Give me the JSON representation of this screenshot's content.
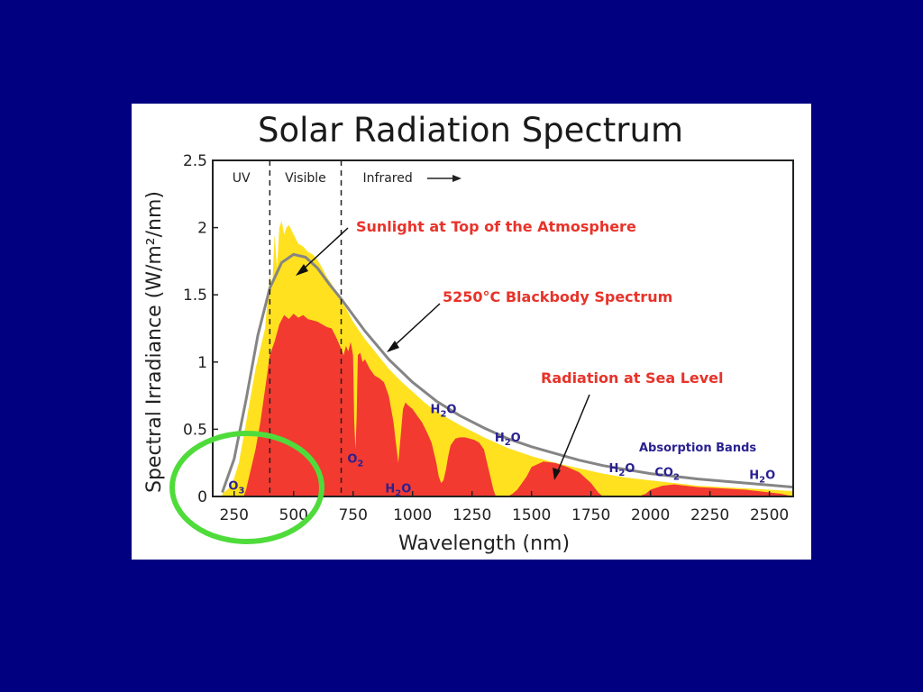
{
  "colors": {
    "background": "#000080",
    "panel": "#ffffff",
    "top_atmosphere": "#ffe11f",
    "sea_level": "#f23a31",
    "blackbody": "#858585",
    "band_label": "#2a2190",
    "annotation": "#e8332a",
    "highlight": "#4fdc3b"
  },
  "chart_data": {
    "type": "area",
    "title": "Solar Radiation Spectrum",
    "xlabel": "Wavelength (nm)",
    "ylabel": "Spectral Irradiance (W/m²/nm)",
    "xlim": [
      160,
      2600
    ],
    "ylim": [
      0,
      2.5
    ],
    "x_ticks": [
      250,
      500,
      750,
      1000,
      1250,
      1500,
      1750,
      2000,
      2250,
      2500
    ],
    "y_ticks": [
      0,
      0.5,
      1,
      1.5,
      2,
      2.5
    ],
    "x_tick_labels": [
      "250",
      "500",
      "750",
      "1000",
      "1250",
      "1500",
      "1750",
      "2000",
      "2250",
      "2500"
    ],
    "y_tick_labels": [
      "0",
      "0.5",
      "1",
      "1.5",
      "2",
      "2.5"
    ],
    "grid": false,
    "regions": [
      {
        "label": "UV",
        "to": 400
      },
      {
        "label": "Visible",
        "from": 400,
        "to": 700
      },
      {
        "label": "Infrared",
        "from": 700,
        "arrow": true
      }
    ],
    "region_boundaries": [
      400,
      700
    ],
    "annotations": {
      "top": "Sunlight at Top of the Atmosphere",
      "blackbody": "5250°C Blackbody Spectrum",
      "sea": "Radiation at Sea Level",
      "absorption": "Absorption Bands"
    },
    "absorption_bands": [
      {
        "x": 260,
        "y": 0.05,
        "main": "O",
        "sub": "3"
      },
      {
        "x": 760,
        "y": 0.25,
        "main": "O",
        "sub": "2"
      },
      {
        "x": 940,
        "y": 0.03,
        "main": "H",
        "sub": "2",
        "tail": "O"
      },
      {
        "x": 1130,
        "y": 0.62,
        "main": "H",
        "sub": "2",
        "tail": "O"
      },
      {
        "x": 1400,
        "y": 0.41,
        "main": "H",
        "sub": "2",
        "tail": "O"
      },
      {
        "x": 1880,
        "y": 0.18,
        "main": "H",
        "sub": "2",
        "tail": "O"
      },
      {
        "x": 2070,
        "y": 0.15,
        "main": "CO",
        "sub": "2"
      },
      {
        "x": 2470,
        "y": 0.13,
        "main": "H",
        "sub": "2",
        "tail": "O"
      }
    ],
    "series": [
      {
        "name": "Sunlight at Top of the Atmosphere",
        "x": [
          200,
          240,
          270,
          290,
          300,
          320,
          340,
          360,
          380,
          400,
          410,
          420,
          430,
          440,
          450,
          460,
          470,
          480,
          500,
          520,
          540,
          560,
          580,
          600,
          620,
          640,
          660,
          680,
          700,
          720,
          750,
          800,
          850,
          900,
          950,
          1000,
          1050,
          1100,
          1200,
          1300,
          1400,
          1500,
          1600,
          1700,
          1800,
          1900,
          2000,
          2100,
          2200,
          2300,
          2400,
          2500,
          2600
        ],
        "y": [
          0.02,
          0.08,
          0.25,
          0.45,
          0.55,
          0.75,
          0.95,
          1.1,
          1.25,
          1.65,
          1.55,
          1.95,
          1.7,
          2.0,
          2.05,
          1.95,
          2.0,
          2.02,
          1.95,
          1.88,
          1.86,
          1.82,
          1.8,
          1.76,
          1.7,
          1.63,
          1.58,
          1.52,
          1.45,
          1.4,
          1.3,
          1.17,
          1.06,
          0.95,
          0.86,
          0.78,
          0.7,
          0.63,
          0.53,
          0.44,
          0.36,
          0.3,
          0.25,
          0.21,
          0.17,
          0.14,
          0.12,
          0.1,
          0.08,
          0.07,
          0.06,
          0.05,
          0.04
        ]
      },
      {
        "name": "5250°C Blackbody Spectrum",
        "x": [
          200,
          250,
          300,
          350,
          400,
          450,
          500,
          550,
          600,
          650,
          700,
          800,
          900,
          1000,
          1100,
          1200,
          1300,
          1400,
          1500,
          1600,
          1700,
          1800,
          1900,
          2000,
          2200,
          2400,
          2600
        ],
        "y": [
          0.03,
          0.28,
          0.72,
          1.2,
          1.55,
          1.74,
          1.8,
          1.78,
          1.7,
          1.58,
          1.47,
          1.23,
          1.02,
          0.85,
          0.71,
          0.6,
          0.51,
          0.43,
          0.37,
          0.32,
          0.27,
          0.23,
          0.2,
          0.17,
          0.13,
          0.1,
          0.07
        ]
      },
      {
        "name": "Radiation at Sea Level",
        "x": [
          290,
          300,
          320,
          340,
          360,
          380,
          400,
          420,
          440,
          460,
          480,
          500,
          520,
          540,
          560,
          580,
          600,
          620,
          640,
          660,
          680,
          700,
          710,
          720,
          730,
          740,
          750,
          755,
          760,
          765,
          770,
          780,
          790,
          800,
          820,
          840,
          860,
          880,
          900,
          920,
          930,
          940,
          950,
          960,
          970,
          980,
          1000,
          1020,
          1040,
          1060,
          1080,
          1100,
          1110,
          1120,
          1130,
          1140,
          1150,
          1160,
          1180,
          1200,
          1220,
          1240,
          1260,
          1280,
          1300,
          1320,
          1340,
          1350,
          1360,
          1380,
          1400,
          1420,
          1440,
          1460,
          1480,
          1500,
          1550,
          1600,
          1650,
          1700,
          1750,
          1780,
          1800,
          1850,
          1900,
          1950,
          1980,
          2000,
          2050,
          2100,
          2150,
          2200,
          2300,
          2400,
          2450,
          2500,
          2550,
          2600
        ],
        "y": [
          0.0,
          0.05,
          0.2,
          0.35,
          0.55,
          0.8,
          1.05,
          1.15,
          1.28,
          1.35,
          1.32,
          1.36,
          1.33,
          1.35,
          1.32,
          1.31,
          1.3,
          1.28,
          1.26,
          1.25,
          1.18,
          1.1,
          1.05,
          1.12,
          1.08,
          1.15,
          1.05,
          0.55,
          0.35,
          0.6,
          1.05,
          1.07,
          1.0,
          1.02,
          0.95,
          0.9,
          0.88,
          0.85,
          0.75,
          0.55,
          0.4,
          0.25,
          0.45,
          0.65,
          0.7,
          0.68,
          0.65,
          0.6,
          0.55,
          0.48,
          0.4,
          0.25,
          0.15,
          0.1,
          0.12,
          0.2,
          0.3,
          0.38,
          0.43,
          0.44,
          0.44,
          0.43,
          0.42,
          0.4,
          0.35,
          0.2,
          0.05,
          0.0,
          0.0,
          0.0,
          0.0,
          0.02,
          0.05,
          0.1,
          0.15,
          0.22,
          0.26,
          0.25,
          0.22,
          0.18,
          0.1,
          0.03,
          0.0,
          0.0,
          0.0,
          0.0,
          0.02,
          0.05,
          0.08,
          0.09,
          0.08,
          0.07,
          0.06,
          0.05,
          0.04,
          0.03,
          0.02,
          0.0
        ]
      }
    ]
  }
}
